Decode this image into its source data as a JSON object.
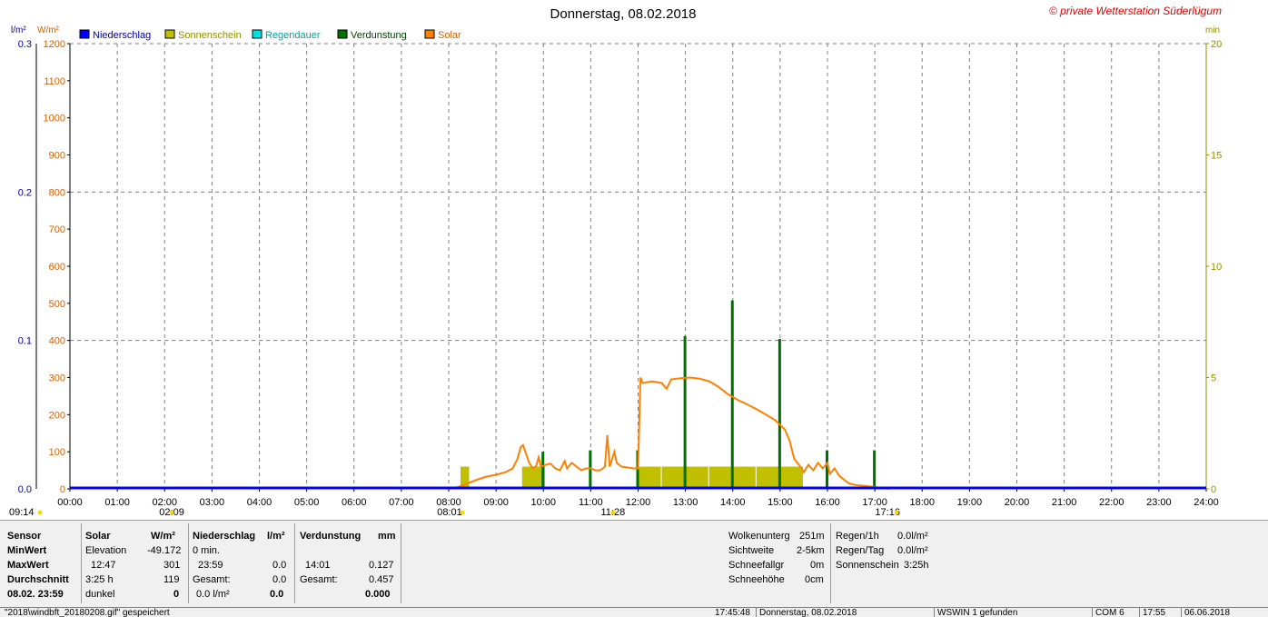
{
  "chart_data": {
    "type": "line",
    "title": "Donnerstag, 08.02.2018",
    "watermark": "© private Wetterstation Süderlügum",
    "axis_units": {
      "left_outer": "l/m²",
      "left_inner": "W/m²",
      "right": "min"
    },
    "legend": [
      {
        "name": "Niederschlag",
        "color": "#0000ff"
      },
      {
        "name": "Sonnenschein",
        "color": "#c0c000"
      },
      {
        "name": "Regendauer",
        "color": "#00e0e0"
      },
      {
        "name": "Verdunstung",
        "color": "#007000"
      },
      {
        "name": "Solar",
        "color": "#ff8000"
      }
    ],
    "legend_placement": "top-left",
    "grid": true,
    "x_ticks": [
      "00:00",
      "01:00",
      "02:00",
      "03:00",
      "04:00",
      "05:00",
      "06:00",
      "07:00",
      "08:00",
      "09:00",
      "10:00",
      "11:00",
      "12:00",
      "13:00",
      "14:00",
      "15:00",
      "16:00",
      "17:00",
      "18:00",
      "19:00",
      "20:00",
      "21:00",
      "22:00",
      "23:00",
      "24:00"
    ],
    "xlim": [
      0,
      24
    ],
    "y_solar": {
      "ylim": [
        0,
        1200
      ],
      "ticks": [
        "0",
        "100",
        "200",
        "300",
        "400",
        "500",
        "600",
        "700",
        "800",
        "900",
        "1000",
        "1100",
        "1200"
      ]
    },
    "y_niederschlag": {
      "ylim": [
        0,
        0.3
      ],
      "ticks": [
        "0.0",
        "0.1",
        "0.2",
        "0.3"
      ]
    },
    "y_minutes": {
      "ylim": [
        0,
        20
      ],
      "ticks": [
        "0",
        "5",
        "10",
        "15",
        "20"
      ]
    },
    "sun_markers": [
      {
        "label": "09:14",
        "x": -0.05
      },
      {
        "label": "02:09",
        "x": 2.15
      },
      {
        "label": "08:01",
        "x": 8.02
      },
      {
        "label": "11:28",
        "x": 11.47
      },
      {
        "label": "17:16",
        "x": 17.27
      }
    ],
    "series": [
      {
        "name": "Solar",
        "points": [
          [
            8.0,
            0
          ],
          [
            8.2,
            5
          ],
          [
            8.4,
            15
          ],
          [
            8.6,
            25
          ],
          [
            8.8,
            33
          ],
          [
            9.0,
            38
          ],
          [
            9.2,
            45
          ],
          [
            9.35,
            55
          ],
          [
            9.45,
            80
          ],
          [
            9.52,
            112
          ],
          [
            9.57,
            118
          ],
          [
            9.62,
            100
          ],
          [
            9.7,
            70
          ],
          [
            9.78,
            55
          ],
          [
            9.85,
            62
          ],
          [
            9.9,
            85
          ],
          [
            9.95,
            60
          ],
          [
            10.05,
            65
          ],
          [
            10.15,
            68
          ],
          [
            10.25,
            55
          ],
          [
            10.35,
            50
          ],
          [
            10.45,
            75
          ],
          [
            10.5,
            55
          ],
          [
            10.6,
            70
          ],
          [
            10.7,
            60
          ],
          [
            10.8,
            50
          ],
          [
            10.9,
            55
          ],
          [
            11.0,
            55
          ],
          [
            11.1,
            50
          ],
          [
            11.2,
            50
          ],
          [
            11.3,
            60
          ],
          [
            11.35,
            145
          ],
          [
            11.4,
            60
          ],
          [
            11.5,
            100
          ],
          [
            11.55,
            70
          ],
          [
            11.65,
            60
          ],
          [
            11.75,
            58
          ],
          [
            11.9,
            55
          ],
          [
            12.0,
            55
          ],
          [
            12.05,
            300
          ],
          [
            12.1,
            285
          ],
          [
            12.3,
            290
          ],
          [
            12.5,
            285
          ],
          [
            12.6,
            270
          ],
          [
            12.7,
            295
          ],
          [
            12.9,
            298
          ],
          [
            13.1,
            300
          ],
          [
            13.3,
            297
          ],
          [
            13.5,
            290
          ],
          [
            13.7,
            275
          ],
          [
            13.9,
            255
          ],
          [
            14.1,
            240
          ],
          [
            14.3,
            228
          ],
          [
            14.5,
            215
          ],
          [
            14.7,
            200
          ],
          [
            14.9,
            185
          ],
          [
            15.1,
            160
          ],
          [
            15.2,
            130
          ],
          [
            15.3,
            80
          ],
          [
            15.4,
            65
          ],
          [
            15.5,
            45
          ],
          [
            15.6,
            65
          ],
          [
            15.7,
            50
          ],
          [
            15.8,
            70
          ],
          [
            15.9,
            55
          ],
          [
            16.0,
            70
          ],
          [
            16.05,
            40
          ],
          [
            16.15,
            55
          ],
          [
            16.25,
            35
          ],
          [
            16.35,
            25
          ],
          [
            16.45,
            15
          ],
          [
            16.6,
            10
          ],
          [
            16.8,
            8
          ],
          [
            17.0,
            5
          ],
          [
            17.2,
            2
          ],
          [
            17.3,
            0
          ]
        ]
      },
      {
        "name": "Sonnenschein",
        "bars": [
          [
            8.25,
            1.0
          ],
          [
            9.55,
            1.0
          ],
          [
            12.0,
            1.0
          ],
          [
            12.5,
            1.0
          ],
          [
            13.0,
            1.0
          ],
          [
            13.5,
            1.0
          ],
          [
            14.0,
            1.0
          ],
          [
            14.5,
            1.0
          ],
          [
            15.0,
            1.0
          ]
        ]
      },
      {
        "name": "Verdunstung",
        "bars": [
          [
            10.0,
            0.025
          ],
          [
            11.0,
            0.026
          ],
          [
            12.0,
            0.026
          ],
          [
            13.0,
            0.103
          ],
          [
            14.0,
            0.127
          ],
          [
            15.0,
            0.101
          ],
          [
            16.0,
            0.026
          ],
          [
            17.0,
            0.026
          ]
        ]
      },
      {
        "name": "Niederschlag",
        "level": 0.0
      }
    ]
  },
  "stats": {
    "sensor_label": "Sensor",
    "minwert_label": "MinWert",
    "maxwert_label": "MaxWert",
    "durchschnitt_label": "Durchschnitt",
    "date_time": "08.02. 23:59",
    "solar_header": "Solar",
    "solar_unit": "W/m²",
    "solar_min_label": "Elevation",
    "solar_min_value": "-49.172",
    "solar_max_time": "12:47",
    "solar_max_value": "301",
    "solar_avg_label": "3:25 h",
    "solar_avg_value": "119",
    "solar_last_label": "dunkel",
    "solar_last_value": "0",
    "nied_header": "Niederschlag",
    "nied_unit": "l/m²",
    "nied_min_label": "0 min.",
    "nied_max_time": "23:59",
    "nied_max_value": "0.0",
    "nied_avg_label": "Gesamt:",
    "nied_avg_value": "0.0",
    "nied_last_label": "0.0 l/m²",
    "nied_last_value": "0.0",
    "verd_header": "Verdunstung",
    "verd_unit": "mm",
    "verd_max_time": "14:01",
    "verd_max_value": "0.127",
    "verd_avg_label": "Gesamt:",
    "verd_avg_value": "0.457",
    "verd_last_value": "0.000",
    "wolken_label": "Wolkenunterg",
    "wolken_value": "251m",
    "sicht_label": "Sichtweite",
    "sicht_value": "2-5km",
    "schneefall_label": "Schneefallgr",
    "schneefall_value": "0m",
    "schneehoehe_label": "Schneehöhe",
    "schneehoehe_value": "0cm",
    "regen1h_label": "Regen/1h",
    "regen1h_value": "0.0l/m²",
    "regentag_label": "Regen/Tag",
    "regentag_value": "0.0l/m²",
    "sonnenschein_label": "Sonnenschein",
    "sonnenschein_value": "3:25h"
  },
  "statusbar": {
    "file": "\"2018\\windbft_20180208.gif\" gespeichert",
    "time": "17:45:48",
    "date": "Donnerstag, 08.02.2018",
    "wswin": "WSWIN 1 gefunden",
    "com": "COM 6",
    "clock": "17:55",
    "today": "06.06.2018"
  }
}
